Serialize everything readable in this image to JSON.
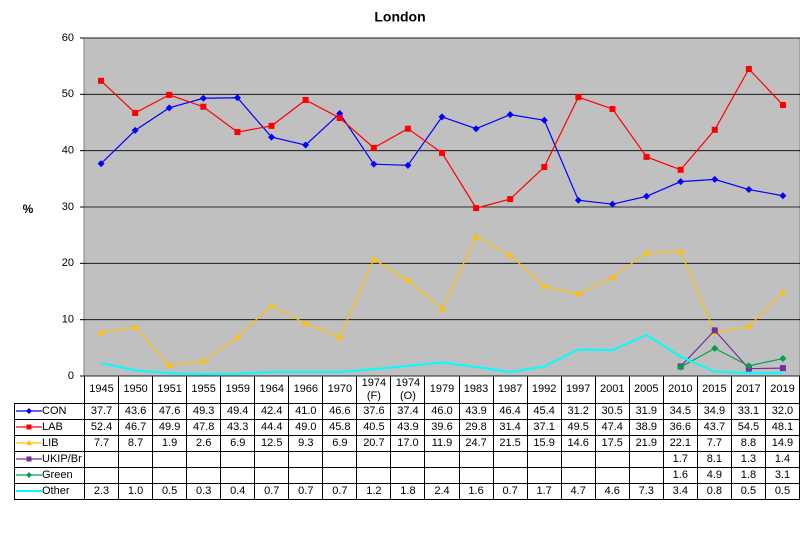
{
  "chart_data": {
    "type": "line",
    "title": "London",
    "y_label": "%",
    "categories": [
      "1945",
      "1950",
      "1951",
      "1955",
      "1959",
      "1964",
      "1966",
      "1970",
      "1974 (F)",
      "1974 (O)",
      "1979",
      "1983",
      "1987",
      "1992",
      "1997",
      "2001",
      "2005",
      "2010",
      "2015",
      "2017",
      "2019"
    ],
    "ylim": [
      0,
      60
    ],
    "yticks": [
      0,
      10,
      20,
      30,
      40,
      50,
      60
    ],
    "grid": true,
    "series": [
      {
        "name": "CON",
        "color": "#0000ff",
        "marker": "diamond",
        "values": [
          37.7,
          43.6,
          47.6,
          49.3,
          49.4,
          42.4,
          41.0,
          46.6,
          37.6,
          37.4,
          46.0,
          43.9,
          46.4,
          45.4,
          31.2,
          30.5,
          31.9,
          34.5,
          34.9,
          33.1,
          32.0
        ],
        "value_labels": [
          "37.7",
          "43.6",
          "47.6",
          "49.3",
          "49.4",
          "42.4",
          "41.0",
          "46.6",
          "37.6",
          "37.4",
          "46.0",
          "43.9",
          "46.4",
          "45.4",
          "31.2",
          "30.5",
          "31.9",
          "34.5",
          "34.9",
          "33.1",
          "32.0"
        ]
      },
      {
        "name": "LAB",
        "color": "#ff0000",
        "marker": "square",
        "values": [
          52.4,
          46.7,
          49.9,
          47.8,
          43.3,
          44.4,
          49.0,
          45.8,
          40.5,
          43.9,
          39.6,
          29.8,
          31.4,
          37.1,
          49.5,
          47.4,
          38.9,
          36.6,
          43.7,
          54.5,
          48.1
        ],
        "value_labels": [
          "52.4",
          "46.7",
          "49.9",
          "47.8",
          "43.3",
          "44.4",
          "49.0",
          "45.8",
          "40.5",
          "43.9",
          "39.6",
          "29.8",
          "31.4",
          "37.1",
          "49.5",
          "47.4",
          "38.9",
          "36.6",
          "43.7",
          "54.5",
          "48.1"
        ]
      },
      {
        "name": "LIB",
        "color": "#ffc000",
        "marker": "triangle",
        "values": [
          7.7,
          8.7,
          1.9,
          2.6,
          6.9,
          12.5,
          9.3,
          6.9,
          20.7,
          17.0,
          11.9,
          24.7,
          21.5,
          15.9,
          14.6,
          17.5,
          21.9,
          22.1,
          7.7,
          8.8,
          14.9
        ],
        "value_labels": [
          "7.7",
          "8.7",
          "1.9",
          "2.6",
          "6.9",
          "12.5",
          "9.3",
          "6.9",
          "20.7",
          "17.0",
          "11.9",
          "24.7",
          "21.5",
          "15.9",
          "14.6",
          "17.5",
          "21.9",
          "22.1",
          "7.7",
          "8.8",
          "14.9"
        ]
      },
      {
        "name": "UKIP/Br",
        "color": "#7030a0",
        "marker": "square",
        "values": [
          null,
          null,
          null,
          null,
          null,
          null,
          null,
          null,
          null,
          null,
          null,
          null,
          null,
          null,
          null,
          null,
          null,
          1.7,
          8.1,
          1.3,
          1.4
        ],
        "value_labels": [
          null,
          null,
          null,
          null,
          null,
          null,
          null,
          null,
          null,
          null,
          null,
          null,
          null,
          null,
          null,
          null,
          null,
          "1.7",
          "8.1",
          "1.3",
          "1.4"
        ]
      },
      {
        "name": "Green",
        "color": "#00a050",
        "marker": "diamond",
        "values": [
          null,
          null,
          null,
          null,
          null,
          null,
          null,
          null,
          null,
          null,
          null,
          null,
          null,
          null,
          null,
          null,
          null,
          1.6,
          4.9,
          1.8,
          3.1
        ],
        "value_labels": [
          null,
          null,
          null,
          null,
          null,
          null,
          null,
          null,
          null,
          null,
          null,
          null,
          null,
          null,
          null,
          null,
          null,
          "1.6",
          "4.9",
          "1.8",
          "3.1"
        ]
      },
      {
        "name": "Other",
        "color": "#00ffff",
        "marker": "none",
        "values": [
          2.3,
          1.0,
          0.5,
          0.3,
          0.4,
          0.7,
          0.7,
          0.7,
          1.2,
          1.8,
          2.4,
          1.6,
          0.7,
          1.7,
          4.7,
          4.6,
          7.3,
          3.4,
          0.8,
          0.5,
          0.5
        ],
        "value_labels": [
          "2.3",
          "1.0",
          "0.5",
          "0.3",
          "0.4",
          "0.7",
          "0.7",
          "0.7",
          "1.2",
          "1.8",
          "2.4",
          "1.6",
          "0.7",
          "1.7",
          "4.7",
          "4.6",
          "7.3",
          "3.4",
          "0.8",
          "0.5",
          "0.5"
        ]
      }
    ]
  }
}
